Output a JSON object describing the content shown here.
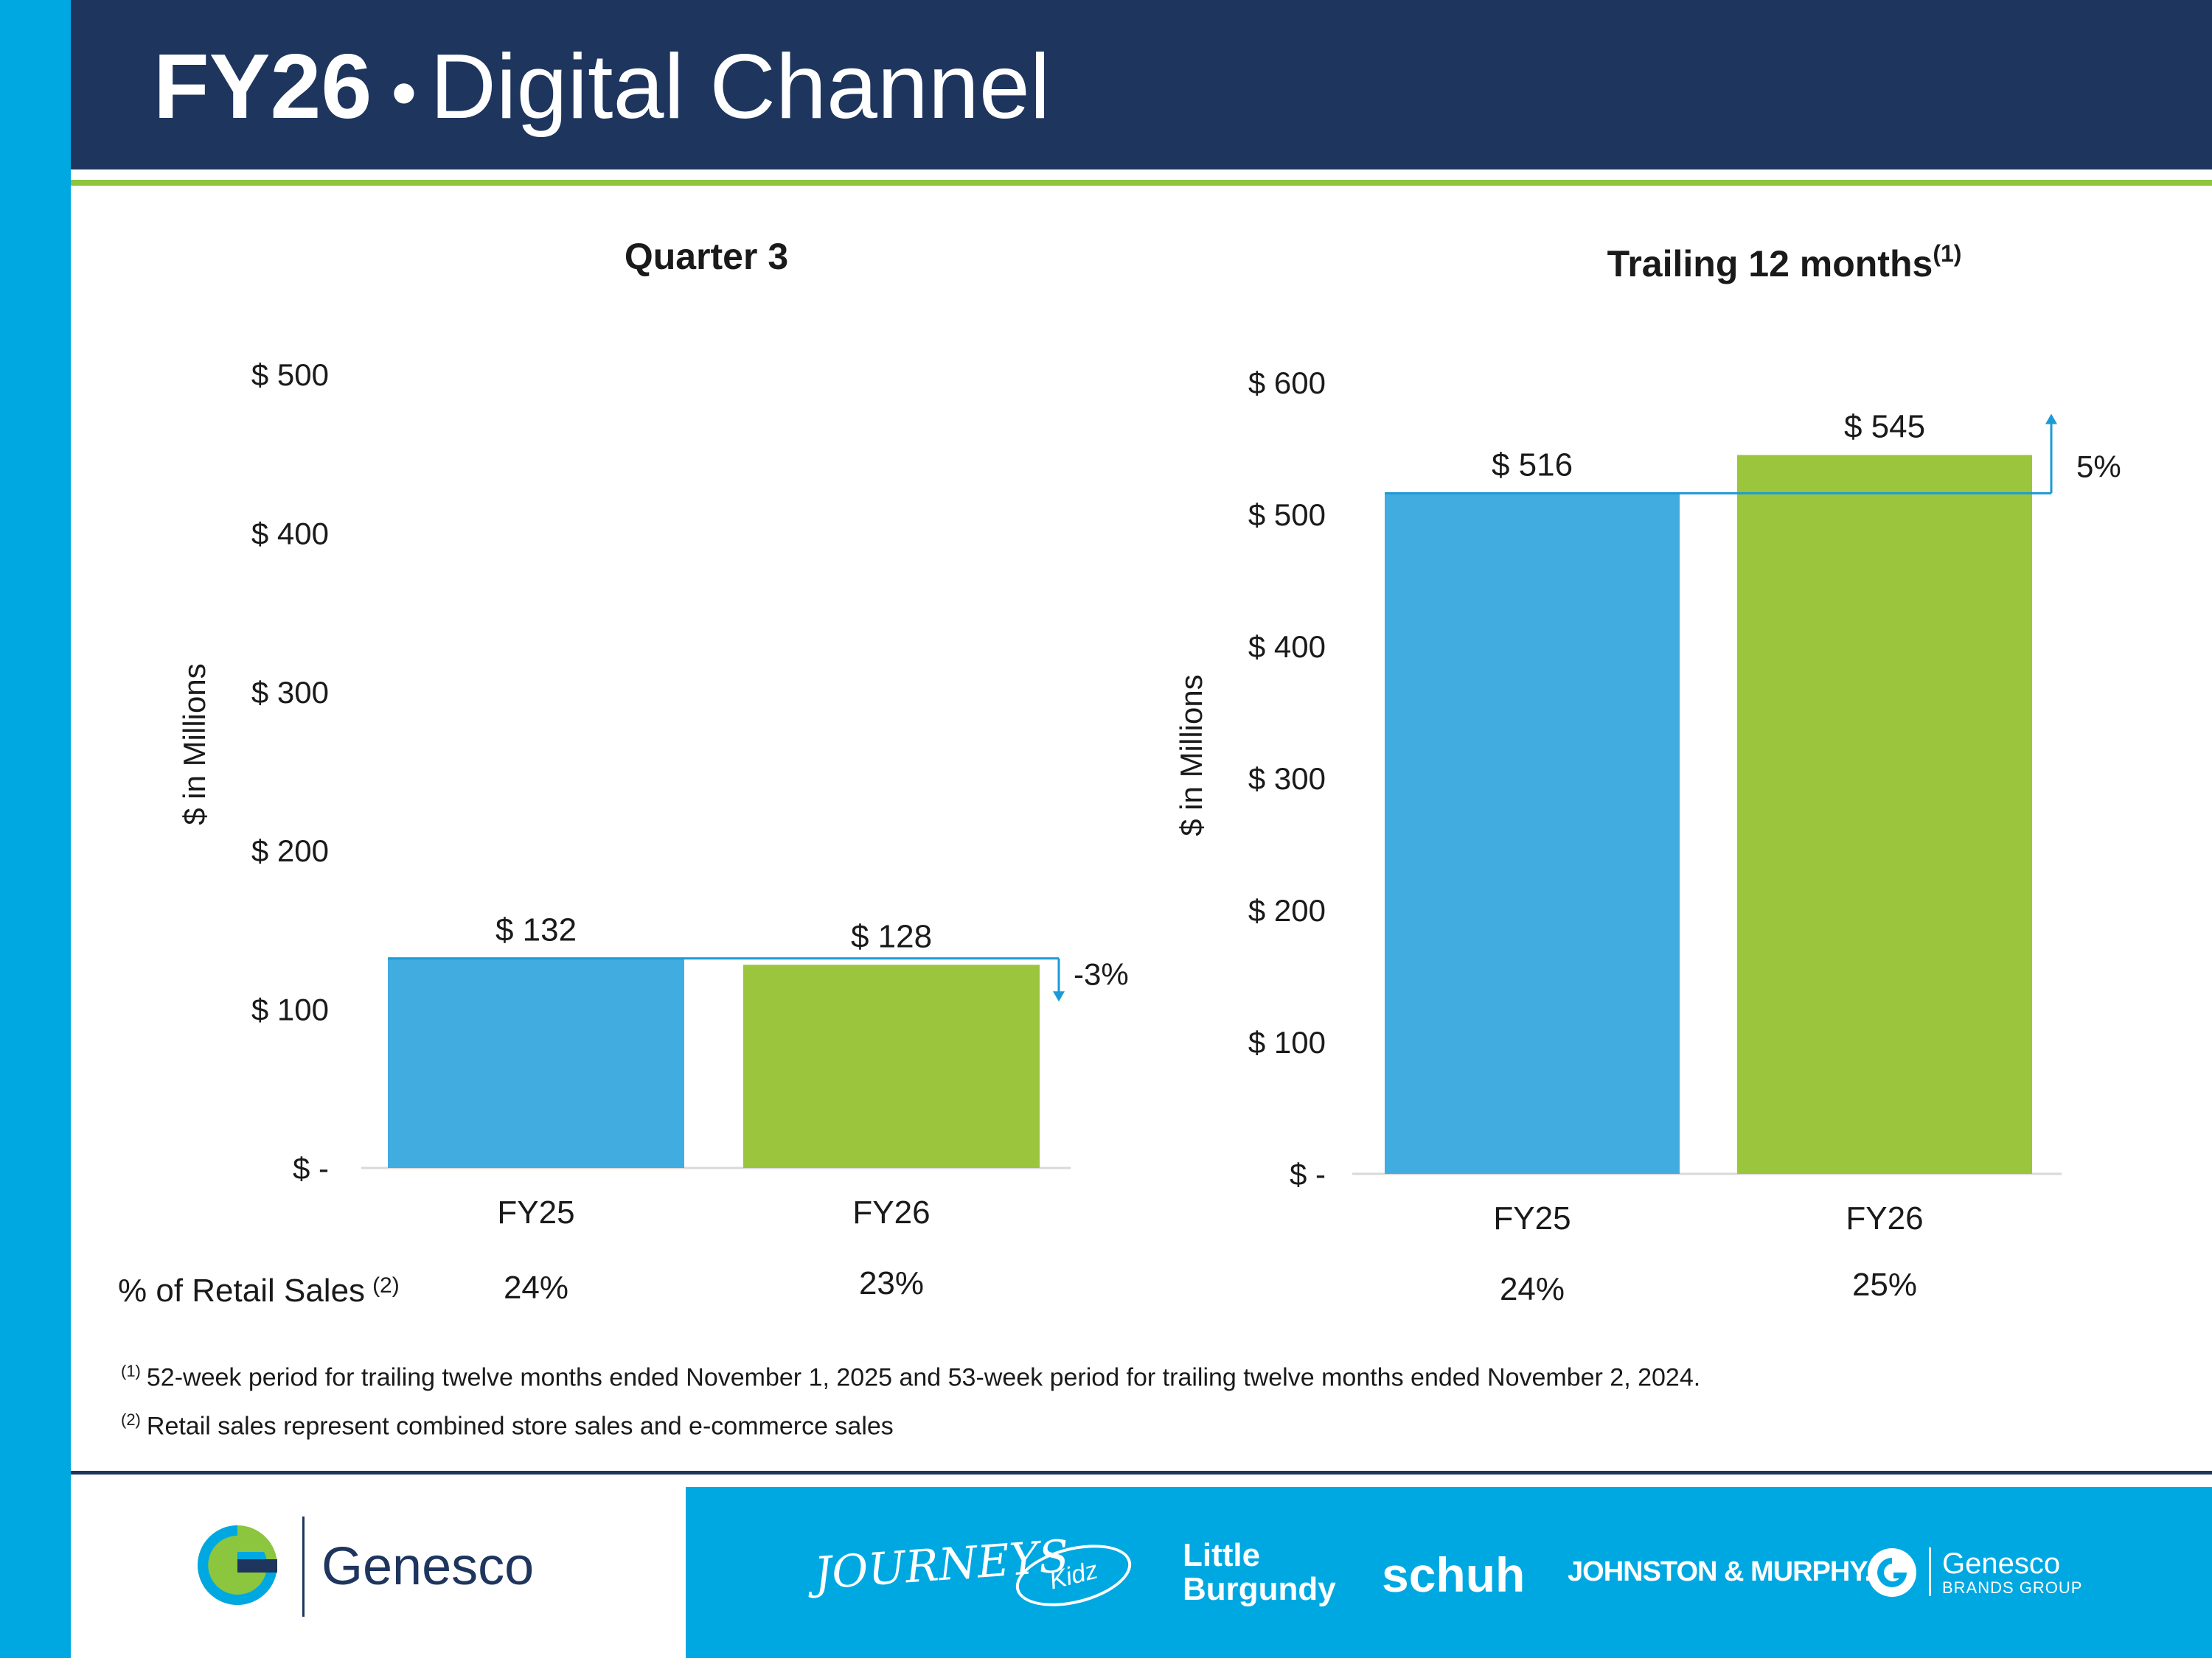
{
  "title": {
    "strong": "FY26",
    "separator": "•",
    "rest": "Digital Channel"
  },
  "colors": {
    "navy": "#1e355e",
    "cyan": "#00a8e1",
    "blue_bar": "#41ace0",
    "green_bar": "#9bc53d",
    "rule_green": "#8cc63f"
  },
  "chart_data": [
    {
      "type": "bar",
      "title": "Quarter 3",
      "title_footnote": "",
      "ylabel": "$ in Millions",
      "ylim": [
        0,
        500
      ],
      "ytick_values": [
        0,
        100,
        200,
        300,
        400,
        500
      ],
      "ytick_labels": [
        "$ -",
        "$ 100",
        "$ 200",
        "$ 300",
        "$ 400",
        "$ 500"
      ],
      "categories": [
        "FY25",
        "FY26"
      ],
      "values": [
        132,
        128
      ],
      "value_labels": [
        "$ 132",
        "$ 128"
      ],
      "change_label": "-3%",
      "change_direction": "down",
      "retail_pct": [
        "24%",
        "23%"
      ],
      "grid": false
    },
    {
      "type": "bar",
      "title": "Trailing 12 months",
      "title_footnote": "(1)",
      "ylabel": "$ in Millions",
      "ylim": [
        0,
        600
      ],
      "ytick_values": [
        0,
        100,
        200,
        300,
        400,
        500,
        600
      ],
      "ytick_labels": [
        "$ -",
        "$ 100",
        "$ 200",
        "$ 300",
        "$ 400",
        "$ 500",
        "$ 600"
      ],
      "categories": [
        "FY25",
        "FY26"
      ],
      "values": [
        516,
        545
      ],
      "value_labels": [
        "$ 516",
        "$ 545"
      ],
      "change_label": "5%",
      "change_direction": "up",
      "retail_pct": [
        "24%",
        "25%"
      ],
      "grid": false
    }
  ],
  "retail_row_label": "% of Retail Sales",
  "retail_row_footnote": "(2)",
  "footnotes": [
    {
      "mark": "(1)",
      "text": "52-week period for trailing twelve months ended November 1, 2025 and 53-week period for trailing twelve months ended November 2, 2024."
    },
    {
      "mark": "(2)",
      "text": "Retail sales represent combined store sales and e-commerce sales"
    }
  ],
  "footer": {
    "company_logo": "Genesco",
    "brands": [
      "JOURNEYS",
      "Kidz",
      "Little",
      "Burgundy",
      "schuh",
      "JOHNSTON & MURPHY.",
      "Genesco",
      "BRANDS GROUP"
    ],
    "brand_kidz_prefix": "Journeys",
    "gbg_icon": "genesco-g-icon"
  }
}
